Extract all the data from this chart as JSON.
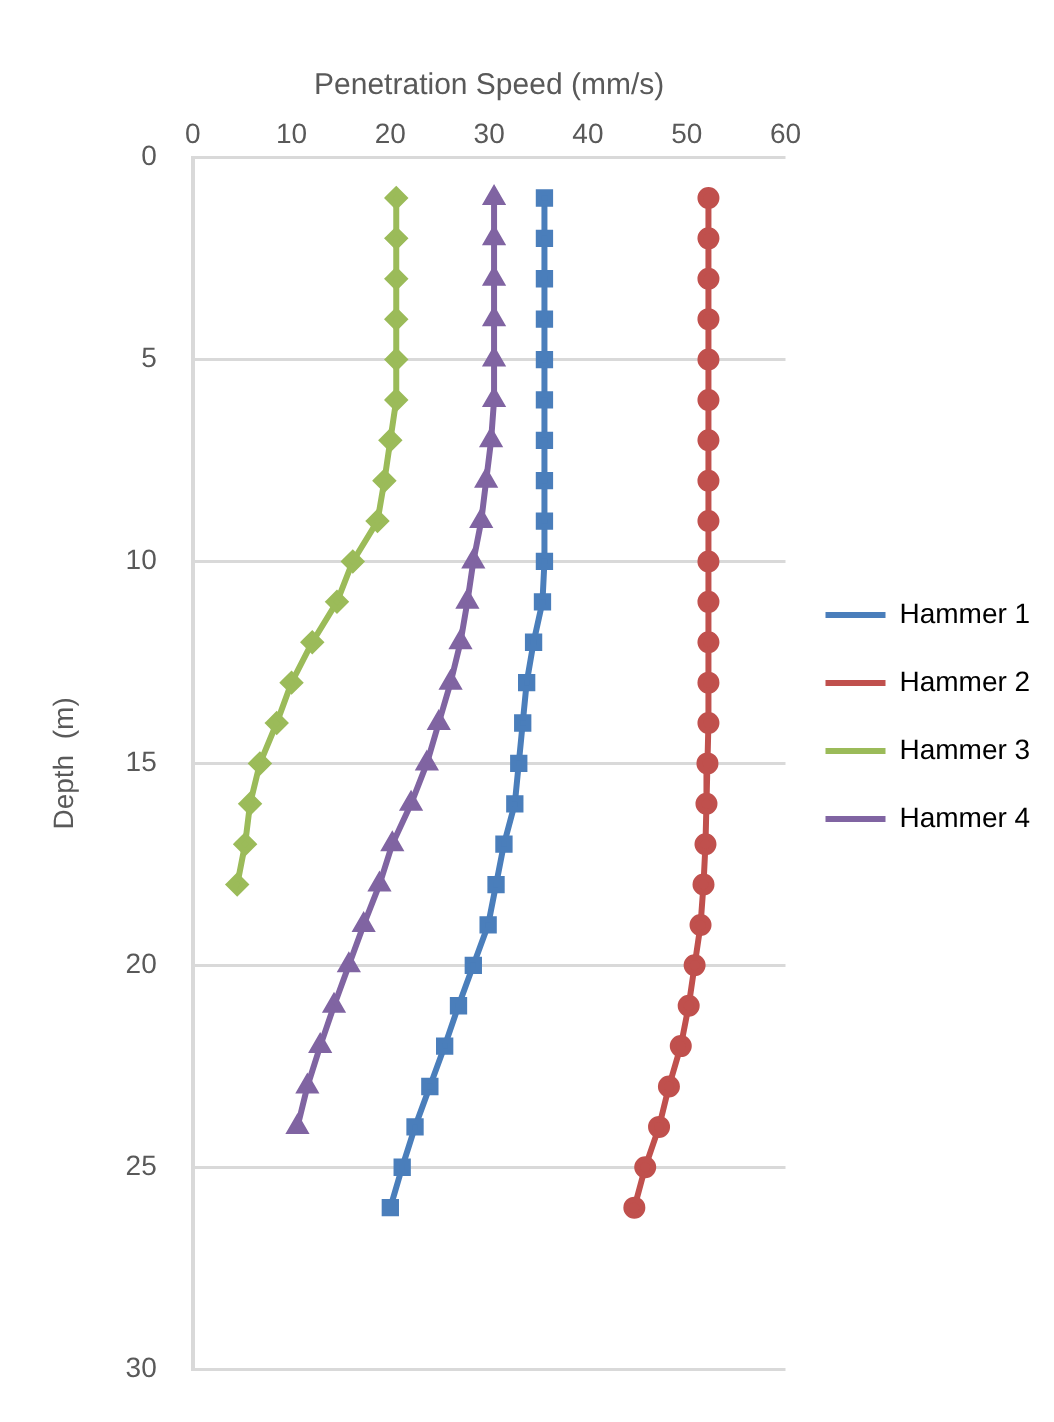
{
  "chart_data": {
    "type": "line",
    "xlabel": "Penetration Speed (mm/s)",
    "ylabel": "Depth  (m)",
    "xlim": [
      0,
      60
    ],
    "xticks": [
      0,
      10,
      20,
      30,
      40,
      50,
      60
    ],
    "ylim": [
      30,
      0
    ],
    "yticks": [
      0,
      5,
      10,
      15,
      20,
      25,
      30
    ],
    "grid": "y",
    "legend": "right",
    "series": [
      {
        "name": "Hammer 1",
        "color": "#4a7ebb",
        "marker": "square",
        "x": [
          35.6,
          35.6,
          35.6,
          35.6,
          35.6,
          35.6,
          35.6,
          35.6,
          35.6,
          35.6,
          35.4,
          34.5,
          33.8,
          33.4,
          33,
          32.6,
          31.5,
          30.7,
          29.9,
          28.4,
          26.9,
          25.5,
          24,
          22.5,
          21.2,
          20
        ],
        "values": [
          1,
          2,
          3,
          4,
          5,
          6,
          7,
          8,
          9,
          10,
          11,
          12,
          13,
          14,
          15,
          16,
          17,
          18,
          19,
          20,
          21,
          22,
          23,
          24,
          25,
          26
        ]
      },
      {
        "name": "Hammer 2",
        "color": "#c0504d",
        "marker": "circle",
        "x": [
          52.2,
          52.2,
          52.2,
          52.2,
          52.2,
          52.2,
          52.2,
          52.2,
          52.2,
          52.2,
          52.2,
          52.2,
          52.2,
          52.2,
          52.1,
          52,
          51.9,
          51.7,
          51.4,
          50.8,
          50.2,
          49.4,
          48.2,
          47.2,
          45.8,
          44.7
        ],
        "values": [
          1,
          2,
          3,
          4,
          5,
          6,
          7,
          8,
          9,
          10,
          11,
          12,
          13,
          14,
          15,
          16,
          17,
          18,
          19,
          20,
          21,
          22,
          23,
          24,
          25,
          26
        ]
      },
      {
        "name": "Hammer 3",
        "color": "#9bbb59",
        "marker": "diamond",
        "x": [
          20.6,
          20.6,
          20.6,
          20.6,
          20.6,
          20.6,
          20,
          19.4,
          18.7,
          16.2,
          14.6,
          12.1,
          10,
          8.5,
          6.8,
          5.8,
          5.3,
          4.5
        ],
        "values": [
          1,
          2,
          3,
          4,
          5,
          6,
          7,
          8,
          9,
          10,
          11,
          12,
          13,
          14,
          15,
          16,
          17,
          18
        ]
      },
      {
        "name": "Hammer 4",
        "color": "#8064a2",
        "marker": "triangle",
        "x": [
          30.5,
          30.5,
          30.5,
          30.5,
          30.5,
          30.5,
          30.2,
          29.7,
          29.2,
          28.4,
          27.8,
          27.1,
          26.1,
          24.9,
          23.7,
          22.1,
          20.2,
          18.9,
          17.3,
          15.8,
          14.3,
          12.9,
          11.6,
          10.6
        ],
        "values": [
          1,
          2,
          3,
          4,
          5,
          6,
          7,
          8,
          9,
          10,
          11,
          12,
          13,
          14,
          15,
          16,
          17,
          18,
          19,
          20,
          21,
          22,
          23,
          24
        ]
      }
    ]
  }
}
